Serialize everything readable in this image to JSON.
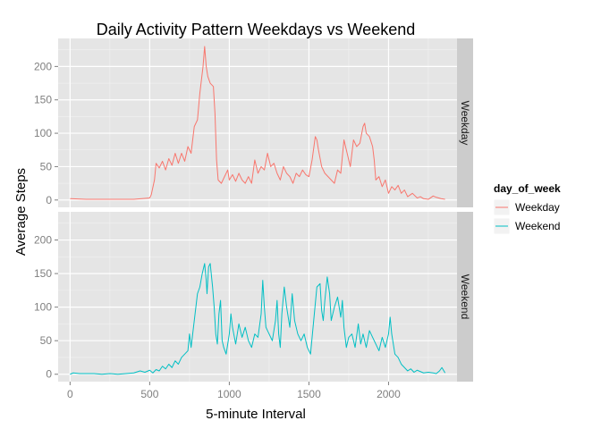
{
  "chart_data": {
    "type": "line",
    "title": "Daily Activity Pattern Weekdays vs Weekend",
    "xlabel": "5-minute Interval",
    "ylabel": "Average Steps",
    "xlim": [
      -75,
      2430
    ],
    "ylim": [
      -11,
      242
    ],
    "x_ticks": [
      0,
      500,
      1000,
      1500,
      2000
    ],
    "y_ticks": [
      0,
      50,
      100,
      150,
      200
    ],
    "grid": true,
    "legend": {
      "title": "day_of_week",
      "position": "right"
    },
    "facets": [
      "Weekday",
      "Weekend"
    ],
    "series": [
      {
        "name": "Weekday",
        "color": "#F8766D",
        "points": [
          [
            0,
            2
          ],
          [
            100,
            1
          ],
          [
            200,
            1
          ],
          [
            300,
            1
          ],
          [
            400,
            1
          ],
          [
            450,
            2
          ],
          [
            500,
            3
          ],
          [
            510,
            8
          ],
          [
            530,
            30
          ],
          [
            540,
            55
          ],
          [
            560,
            48
          ],
          [
            580,
            58
          ],
          [
            600,
            45
          ],
          [
            620,
            62
          ],
          [
            640,
            52
          ],
          [
            660,
            70
          ],
          [
            680,
            55
          ],
          [
            700,
            70
          ],
          [
            720,
            58
          ],
          [
            740,
            80
          ],
          [
            760,
            70
          ],
          [
            780,
            110
          ],
          [
            800,
            120
          ],
          [
            815,
            160
          ],
          [
            825,
            180
          ],
          [
            835,
            200
          ],
          [
            845,
            230
          ],
          [
            855,
            200
          ],
          [
            865,
            185
          ],
          [
            880,
            175
          ],
          [
            900,
            170
          ],
          [
            910,
            130
          ],
          [
            920,
            60
          ],
          [
            930,
            30
          ],
          [
            950,
            25
          ],
          [
            970,
            35
          ],
          [
            990,
            45
          ],
          [
            1000,
            30
          ],
          [
            1020,
            38
          ],
          [
            1040,
            28
          ],
          [
            1060,
            40
          ],
          [
            1080,
            30
          ],
          [
            1100,
            25
          ],
          [
            1120,
            35
          ],
          [
            1140,
            25
          ],
          [
            1160,
            60
          ],
          [
            1180,
            40
          ],
          [
            1200,
            50
          ],
          [
            1220,
            45
          ],
          [
            1240,
            70
          ],
          [
            1260,
            50
          ],
          [
            1280,
            55
          ],
          [
            1300,
            40
          ],
          [
            1320,
            30
          ],
          [
            1340,
            50
          ],
          [
            1360,
            40
          ],
          [
            1380,
            35
          ],
          [
            1400,
            25
          ],
          [
            1420,
            40
          ],
          [
            1440,
            35
          ],
          [
            1460,
            45
          ],
          [
            1480,
            38
          ],
          [
            1500,
            35
          ],
          [
            1520,
            60
          ],
          [
            1540,
            95
          ],
          [
            1550,
            90
          ],
          [
            1560,
            75
          ],
          [
            1580,
            50
          ],
          [
            1600,
            40
          ],
          [
            1620,
            35
          ],
          [
            1640,
            30
          ],
          [
            1660,
            25
          ],
          [
            1680,
            45
          ],
          [
            1700,
            40
          ],
          [
            1720,
            90
          ],
          [
            1740,
            70
          ],
          [
            1760,
            50
          ],
          [
            1780,
            90
          ],
          [
            1800,
            80
          ],
          [
            1820,
            85
          ],
          [
            1840,
            110
          ],
          [
            1850,
            115
          ],
          [
            1860,
            100
          ],
          [
            1880,
            95
          ],
          [
            1900,
            80
          ],
          [
            1910,
            60
          ],
          [
            1920,
            30
          ],
          [
            1940,
            35
          ],
          [
            1960,
            20
          ],
          [
            1980,
            30
          ],
          [
            2000,
            10
          ],
          [
            2020,
            20
          ],
          [
            2040,
            15
          ],
          [
            2060,
            22
          ],
          [
            2080,
            10
          ],
          [
            2100,
            15
          ],
          [
            2120,
            5
          ],
          [
            2150,
            10
          ],
          [
            2180,
            3
          ],
          [
            2200,
            5
          ],
          [
            2220,
            2
          ],
          [
            2250,
            1
          ],
          [
            2280,
            6
          ],
          [
            2300,
            4
          ],
          [
            2330,
            2
          ],
          [
            2355,
            1
          ]
        ]
      },
      {
        "name": "Weekend",
        "color": "#00BFC4",
        "points": [
          [
            0,
            0
          ],
          [
            20,
            2
          ],
          [
            60,
            1
          ],
          [
            100,
            1
          ],
          [
            150,
            1
          ],
          [
            200,
            0
          ],
          [
            250,
            1
          ],
          [
            300,
            0
          ],
          [
            350,
            1
          ],
          [
            400,
            2
          ],
          [
            440,
            5
          ],
          [
            470,
            3
          ],
          [
            500,
            6
          ],
          [
            520,
            2
          ],
          [
            540,
            7
          ],
          [
            560,
            5
          ],
          [
            580,
            12
          ],
          [
            600,
            8
          ],
          [
            620,
            15
          ],
          [
            640,
            10
          ],
          [
            660,
            20
          ],
          [
            680,
            15
          ],
          [
            700,
            25
          ],
          [
            720,
            30
          ],
          [
            740,
            35
          ],
          [
            750,
            60
          ],
          [
            760,
            40
          ],
          [
            780,
            80
          ],
          [
            800,
            120
          ],
          [
            815,
            130
          ],
          [
            830,
            150
          ],
          [
            845,
            165
          ],
          [
            855,
            140
          ],
          [
            860,
            120
          ],
          [
            870,
            160
          ],
          [
            880,
            165
          ],
          [
            895,
            130
          ],
          [
            905,
            100
          ],
          [
            915,
            60
          ],
          [
            925,
            45
          ],
          [
            935,
            90
          ],
          [
            945,
            110
          ],
          [
            955,
            50
          ],
          [
            965,
            40
          ],
          [
            980,
            30
          ],
          [
            1000,
            60
          ],
          [
            1010,
            90
          ],
          [
            1020,
            70
          ],
          [
            1040,
            45
          ],
          [
            1060,
            75
          ],
          [
            1080,
            55
          ],
          [
            1100,
            70
          ],
          [
            1120,
            50
          ],
          [
            1140,
            40
          ],
          [
            1160,
            60
          ],
          [
            1180,
            55
          ],
          [
            1200,
            90
          ],
          [
            1210,
            140
          ],
          [
            1220,
            100
          ],
          [
            1230,
            70
          ],
          [
            1250,
            60
          ],
          [
            1270,
            50
          ],
          [
            1290,
            80
          ],
          [
            1300,
            110
          ],
          [
            1310,
            60
          ],
          [
            1320,
            40
          ],
          [
            1330,
            90
          ],
          [
            1345,
            130
          ],
          [
            1360,
            100
          ],
          [
            1380,
            70
          ],
          [
            1395,
            120
          ],
          [
            1410,
            80
          ],
          [
            1430,
            60
          ],
          [
            1450,
            50
          ],
          [
            1470,
            60
          ],
          [
            1490,
            40
          ],
          [
            1510,
            30
          ],
          [
            1530,
            80
          ],
          [
            1550,
            130
          ],
          [
            1570,
            135
          ],
          [
            1580,
            95
          ],
          [
            1590,
            80
          ],
          [
            1600,
            110
          ],
          [
            1615,
            145
          ],
          [
            1630,
            120
          ],
          [
            1640,
            80
          ],
          [
            1660,
            100
          ],
          [
            1680,
            115
          ],
          [
            1700,
            85
          ],
          [
            1710,
            110
          ],
          [
            1720,
            70
          ],
          [
            1735,
            40
          ],
          [
            1750,
            55
          ],
          [
            1770,
            60
          ],
          [
            1790,
            40
          ],
          [
            1810,
            75
          ],
          [
            1825,
            45
          ],
          [
            1840,
            60
          ],
          [
            1860,
            40
          ],
          [
            1880,
            65
          ],
          [
            1900,
            55
          ],
          [
            1920,
            45
          ],
          [
            1940,
            35
          ],
          [
            1960,
            55
          ],
          [
            1980,
            40
          ],
          [
            2000,
            60
          ],
          [
            2010,
            85
          ],
          [
            2020,
            60
          ],
          [
            2040,
            30
          ],
          [
            2060,
            25
          ],
          [
            2070,
            20
          ],
          [
            2080,
            15
          ],
          [
            2100,
            10
          ],
          [
            2120,
            5
          ],
          [
            2140,
            8
          ],
          [
            2160,
            3
          ],
          [
            2180,
            6
          ],
          [
            2200,
            4
          ],
          [
            2220,
            2
          ],
          [
            2250,
            3
          ],
          [
            2280,
            2
          ],
          [
            2300,
            1
          ],
          [
            2320,
            5
          ],
          [
            2335,
            10
          ],
          [
            2355,
            2
          ]
        ]
      }
    ]
  }
}
